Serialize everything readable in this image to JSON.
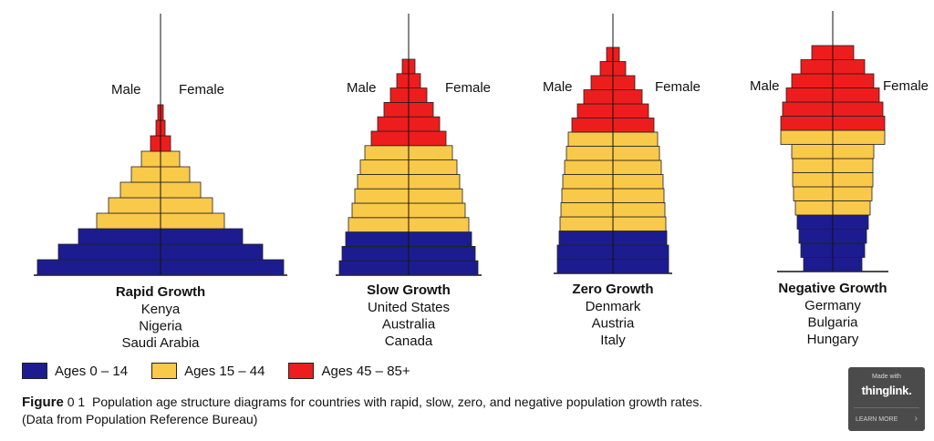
{
  "chart_data": {
    "type": "bar",
    "pyramids": [
      {
        "title": "Rapid Growth",
        "countries": [
          "Kenya",
          "Nigeria",
          "Saudi Arabia"
        ],
        "male_label": "Male",
        "female_label": "Female",
        "bar_widths": [
          135,
          112,
          90,
          70,
          57,
          44,
          32,
          21,
          11,
          5,
          3
        ]
      },
      {
        "title": "Slow Growth",
        "countries": [
          "United States",
          "Australia",
          "Canada"
        ],
        "male_label": "Male",
        "female_label": "Female",
        "bar_widths": [
          76,
          73,
          69,
          66,
          62,
          59,
          56,
          53,
          48,
          41,
          34,
          27,
          20,
          13,
          7
        ]
      },
      {
        "title": "Zero Growth",
        "countries": [
          "Denmark",
          "Austria",
          "Italy"
        ],
        "male_label": "Male",
        "female_label": "Female",
        "bar_widths": [
          61,
          61,
          59,
          58,
          57,
          56,
          55,
          53,
          51,
          49,
          45,
          39,
          32,
          24,
          14,
          7
        ]
      },
      {
        "title": "Negative Growth",
        "countries": [
          "Germany",
          "Bulgaria",
          "Hungary"
        ],
        "male_label": "Male",
        "female_label": "Female",
        "bar_widths": [
          32,
          35,
          37,
          39,
          41,
          43,
          44,
          44,
          45,
          57,
          57,
          55,
          51,
          45,
          35,
          23
        ]
      }
    ]
  },
  "legend": {
    "items": [
      {
        "label": "Ages 0 – 14",
        "color": "#1c1c90"
      },
      {
        "label": "Ages 15 – 44",
        "color": "#f9c94a"
      },
      {
        "label": "Ages 45 – 85+",
        "color": "#ee1d1d"
      }
    ]
  },
  "caption": {
    "figure": "Figure",
    "number": "0 1",
    "text": "Population age structure diagrams for countries with rapid, slow, zero, and negative population growth rates. (Data from Population Reference Bureau)"
  },
  "badge": {
    "made_with": "Made with",
    "brand": "thinglink.",
    "learn_more": "LEARN MORE"
  }
}
